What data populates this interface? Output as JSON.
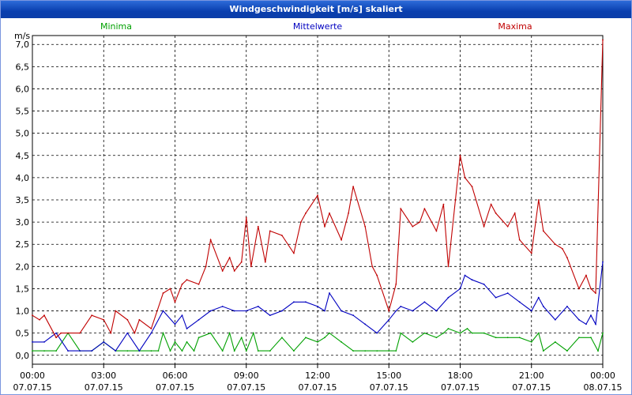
{
  "window": {
    "title": "Windgeschwindigkeit [m/s] skaliert"
  },
  "chart_data": {
    "type": "line",
    "title": "Windgeschwindigkeit [m/s] skaliert",
    "ylabel": "m/s",
    "ylim": [
      -0.2,
      7.2
    ],
    "y_ticks": [
      "0,0",
      "0,5",
      "1,0",
      "1,5",
      "2,0",
      "2,5",
      "3,0",
      "3,5",
      "4,0",
      "4,5",
      "5,0",
      "5,5",
      "6,0",
      "6,5",
      "7,0"
    ],
    "x_range_hours": [
      0,
      24
    ],
    "x_ticks": [
      {
        "time": "00:00",
        "date": "07.07.15"
      },
      {
        "time": "03:00",
        "date": "07.07.15"
      },
      {
        "time": "06:00",
        "date": "07.07.15"
      },
      {
        "time": "09:00",
        "date": "07.07.15"
      },
      {
        "time": "12:00",
        "date": "07.07.15"
      },
      {
        "time": "15:00",
        "date": "07.07.15"
      },
      {
        "time": "18:00",
        "date": "07.07.15"
      },
      {
        "time": "21:00",
        "date": "07.07.15"
      },
      {
        "time": "00:00",
        "date": "08.07.15"
      }
    ],
    "grid": true,
    "legend_position": "top",
    "series": [
      {
        "name": "Minima",
        "color": "#00A000",
        "x": [
          0,
          0.5,
          1,
          1.5,
          2,
          2.5,
          3,
          3.5,
          4,
          4.5,
          5,
          5.3,
          5.5,
          5.8,
          6,
          6.3,
          6.5,
          6.8,
          7,
          7.5,
          8,
          8.3,
          8.5,
          8.8,
          9,
          9.3,
          9.5,
          10,
          10.5,
          11,
          11.5,
          12,
          12.3,
          12.5,
          13,
          13.5,
          14,
          14.5,
          15,
          15.3,
          15.5,
          16,
          16.5,
          17,
          17.3,
          17.5,
          18,
          18.3,
          18.5,
          19,
          19.5,
          20,
          20.5,
          21,
          21.3,
          21.5,
          22,
          22.5,
          23,
          23.5,
          23.8,
          24
        ],
        "y": [
          0.1,
          0.1,
          0.1,
          0.5,
          0.1,
          0.1,
          0.3,
          0.1,
          0.1,
          0.1,
          0.1,
          0.1,
          0.5,
          0.1,
          0.3,
          0.1,
          0.3,
          0.1,
          0.4,
          0.5,
          0.1,
          0.5,
          0.1,
          0.4,
          0.1,
          0.5,
          0.1,
          0.1,
          0.4,
          0.1,
          0.4,
          0.3,
          0.4,
          0.5,
          0.3,
          0.1,
          0.1,
          0.1,
          0.1,
          0.1,
          0.5,
          0.3,
          0.5,
          0.4,
          0.5,
          0.6,
          0.5,
          0.6,
          0.5,
          0.5,
          0.4,
          0.4,
          0.4,
          0.3,
          0.5,
          0.1,
          0.3,
          0.1,
          0.4,
          0.4,
          0.1,
          0.5
        ]
      },
      {
        "name": "Mittelwerte",
        "color": "#0000C0",
        "x": [
          0,
          0.5,
          1,
          1.5,
          2,
          2.5,
          3,
          3.5,
          4,
          4.5,
          5,
          5.5,
          6,
          6.3,
          6.5,
          7,
          7.5,
          8,
          8.5,
          9,
          9.5,
          10,
          10.5,
          11,
          11.5,
          12,
          12.3,
          12.5,
          13,
          13.5,
          14,
          14.5,
          15,
          15.3,
          15.5,
          16,
          16.5,
          17,
          17.5,
          18,
          18.2,
          18.5,
          19,
          19.5,
          20,
          20.5,
          21,
          21.3,
          21.5,
          22,
          22.5,
          23,
          23.3,
          23.5,
          23.7,
          24
        ],
        "y": [
          0.3,
          0.3,
          0.5,
          0.1,
          0.1,
          0.1,
          0.3,
          0.1,
          0.5,
          0.1,
          0.5,
          1.0,
          0.7,
          0.9,
          0.6,
          0.8,
          1.0,
          1.1,
          1.0,
          1.0,
          1.1,
          0.9,
          1.0,
          1.2,
          1.2,
          1.1,
          1.0,
          1.4,
          1.0,
          0.9,
          0.7,
          0.5,
          0.8,
          1.0,
          1.1,
          1.0,
          1.2,
          1.0,
          1.3,
          1.5,
          1.8,
          1.7,
          1.6,
          1.3,
          1.4,
          1.2,
          1.0,
          1.3,
          1.1,
          0.8,
          1.1,
          0.8,
          0.7,
          0.9,
          0.7,
          2.1
        ]
      },
      {
        "name": "Maxima",
        "color": "#C00000",
        "x": [
          0,
          0.3,
          0.5,
          1,
          1.2,
          1.5,
          2,
          2.5,
          3,
          3.3,
          3.5,
          4,
          4.3,
          4.5,
          5,
          5.5,
          5.8,
          6,
          6.3,
          6.5,
          7,
          7.3,
          7.5,
          8,
          8.3,
          8.5,
          8.8,
          9,
          9.2,
          9.5,
          9.8,
          10,
          10.5,
          11,
          11.3,
          11.5,
          12,
          12.3,
          12.5,
          13,
          13.3,
          13.5,
          14,
          14.3,
          14.5,
          15,
          15.3,
          15.5,
          16,
          16.3,
          16.5,
          17,
          17.3,
          17.5,
          17.8,
          18,
          18.2,
          18.5,
          19,
          19.3,
          19.5,
          20,
          20.3,
          20.5,
          21,
          21.3,
          21.5,
          22,
          22.3,
          22.5,
          23,
          23.3,
          23.5,
          23.7,
          24
        ],
        "y": [
          0.9,
          0.8,
          0.9,
          0.4,
          0.5,
          0.5,
          0.5,
          0.9,
          0.8,
          0.5,
          1.0,
          0.8,
          0.5,
          0.8,
          0.6,
          1.4,
          1.5,
          1.2,
          1.6,
          1.7,
          1.6,
          2.0,
          2.6,
          1.9,
          2.2,
          1.9,
          2.1,
          3.1,
          2.0,
          2.9,
          2.1,
          2.8,
          2.7,
          2.3,
          3.0,
          3.2,
          3.6,
          2.9,
          3.2,
          2.6,
          3.2,
          3.8,
          2.9,
          2.0,
          1.8,
          1.0,
          1.6,
          3.3,
          2.9,
          3.0,
          3.3,
          2.8,
          3.4,
          2.0,
          3.5,
          4.5,
          4.0,
          3.8,
          2.9,
          3.4,
          3.2,
          2.9,
          3.2,
          2.6,
          2.3,
          3.5,
          2.8,
          2.5,
          2.4,
          2.2,
          1.5,
          1.8,
          1.5,
          1.4,
          7.1
        ]
      }
    ]
  }
}
